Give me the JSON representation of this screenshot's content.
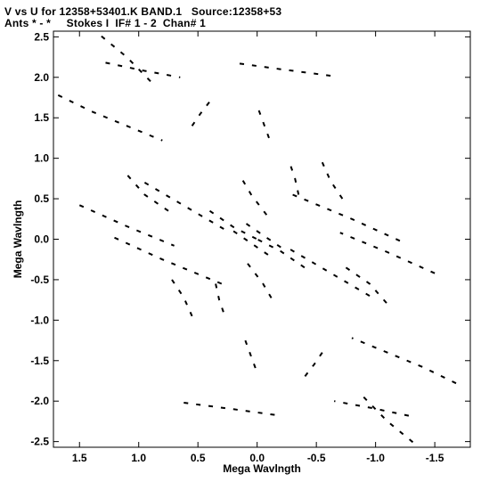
{
  "header": {
    "line1": "V vs U for 12358+53401.K BAND.1   Source:12358+53",
    "line2": "Ants * - *     Stokes I  IF# 1 - 2  Chan# 1"
  },
  "chart_data": {
    "type": "scatter",
    "title": "V vs U for 12358+53401.K BAND.1   Source:12358+53",
    "subtitle": "Ants * - *     Stokes I  IF# 1 - 2  Chan# 1",
    "xlabel": "Mega Wavlngth",
    "ylabel": "Mega Wavlngth",
    "xlim": [
      1.72,
      -1.8
    ],
    "ylim": [
      -2.57,
      2.57
    ],
    "x_ticks": [
      1.5,
      1.0,
      0.5,
      0.0,
      -0.5,
      -1.0,
      -1.5
    ],
    "x_tick_labels": [
      "1.5",
      "1.0",
      "0.5",
      "0.0",
      "-0.5",
      "-1.0",
      "-1.5"
    ],
    "y_ticks": [
      2.5,
      2.0,
      1.5,
      1.0,
      0.5,
      0.0,
      -0.5,
      -1.0,
      -1.5,
      -2.0,
      -2.5
    ],
    "y_tick_labels": [
      "2.5",
      "2.0",
      "1.5",
      "1.0",
      "0.5",
      "0.0",
      "-0.5",
      "-1.0",
      "-1.5",
      "-2.0",
      "-2.5"
    ],
    "grid": false,
    "legend": "none",
    "marker_color": "#000000",
    "tracks": [
      {
        "u": [
          1.68,
          1.4,
          1.1,
          0.8
        ],
        "v": [
          1.78,
          1.58,
          1.4,
          1.22
        ]
      },
      {
        "u": [
          -1.68,
          -1.4,
          -1.1,
          -0.8
        ],
        "v": [
          -1.78,
          -1.58,
          -1.4,
          -1.22
        ]
      },
      {
        "u": [
          1.28,
          0.95,
          0.65
        ],
        "v": [
          2.18,
          2.08,
          2.0
        ]
      },
      {
        "u": [
          -1.28,
          -0.95,
          -0.65
        ],
        "v": [
          -2.18,
          -2.08,
          -2.0
        ]
      },
      {
        "u": [
          1.5,
          1.1,
          0.7
        ],
        "v": [
          0.42,
          0.16,
          -0.08
        ]
      },
      {
        "u": [
          -1.5,
          -1.1,
          -0.7
        ],
        "v": [
          -0.42,
          -0.16,
          0.08
        ]
      },
      {
        "u": [
          0.72,
          0.62,
          0.55
        ],
        "v": [
          -0.5,
          -0.72,
          -0.95
        ]
      },
      {
        "u": [
          -0.72,
          -0.62,
          -0.55
        ],
        "v": [
          0.5,
          0.72,
          0.95
        ]
      },
      {
        "u": [
          0.35,
          0.32,
          0.28
        ],
        "v": [
          -0.55,
          -0.75,
          -0.92
        ]
      },
      {
        "u": [
          -0.35,
          -0.32,
          -0.28
        ],
        "v": [
          0.55,
          0.75,
          0.92
        ]
      },
      {
        "u": [
          0.1,
          0.05,
          0.0
        ],
        "v": [
          -1.25,
          -1.45,
          -1.65
        ]
      },
      {
        "u": [
          -0.1,
          -0.05,
          0.0
        ],
        "v": [
          1.25,
          1.45,
          1.65
        ]
      },
      {
        "u": [
          -0.55,
          -0.48,
          -0.4
        ],
        "v": [
          -1.4,
          -1.55,
          -1.7
        ]
      },
      {
        "u": [
          0.55,
          0.48,
          0.4
        ],
        "v": [
          1.4,
          1.55,
          1.7
        ]
      },
      {
        "u": [
          0.95,
          0.6,
          0.25
        ],
        "v": [
          0.7,
          0.4,
          0.1
        ]
      },
      {
        "u": [
          -0.95,
          -0.6,
          -0.25
        ],
        "v": [
          -0.7,
          -0.4,
          -0.1
        ]
      },
      {
        "u": [
          0.4,
          0.2,
          0.0
        ],
        "v": [
          0.35,
          0.15,
          0.0
        ]
      },
      {
        "u": [
          -0.4,
          -0.2,
          0.0
        ],
        "v": [
          -0.35,
          -0.15,
          0.0
        ]
      },
      {
        "u": [
          -0.75,
          -0.95,
          -1.1
        ],
        "v": [
          -0.35,
          -0.55,
          -0.8
        ]
      },
      {
        "u": [
          0.75,
          0.95,
          1.1
        ],
        "v": [
          0.35,
          0.55,
          0.8
        ]
      },
      {
        "u": [
          -0.3,
          -0.8,
          -1.25
        ],
        "v": [
          0.55,
          0.25,
          -0.05
        ]
      },
      {
        "u": [
          0.3,
          0.8,
          1.25
        ],
        "v": [
          -0.55,
          -0.25,
          0.05
        ]
      },
      {
        "u": [
          -0.9,
          -1.1,
          -1.35
        ],
        "v": [
          -1.95,
          -2.25,
          -2.55
        ]
      },
      {
        "u": [
          0.9,
          1.1,
          1.35
        ],
        "v": [
          1.95,
          2.25,
          2.55
        ]
      },
      {
        "u": [
          0.62,
          0.2,
          -0.2
        ],
        "v": [
          -2.02,
          -2.1,
          -2.18
        ]
      },
      {
        "u": [
          -0.62,
          -0.2,
          0.2
        ],
        "v": [
          2.02,
          2.1,
          2.18
        ]
      },
      {
        "u": [
          0.08,
          -0.05,
          -0.15
        ],
        "v": [
          -0.3,
          -0.55,
          -0.8
        ]
      },
      {
        "u": [
          -0.08,
          0.05,
          0.15
        ],
        "v": [
          0.3,
          0.55,
          0.8
        ]
      },
      {
        "u": [
          0.2,
          0.05,
          -0.1
        ],
        "v": [
          0.1,
          -0.05,
          -0.2
        ]
      },
      {
        "u": [
          -0.2,
          -0.05,
          0.1
        ],
        "v": [
          -0.1,
          0.05,
          0.2
        ]
      }
    ]
  }
}
